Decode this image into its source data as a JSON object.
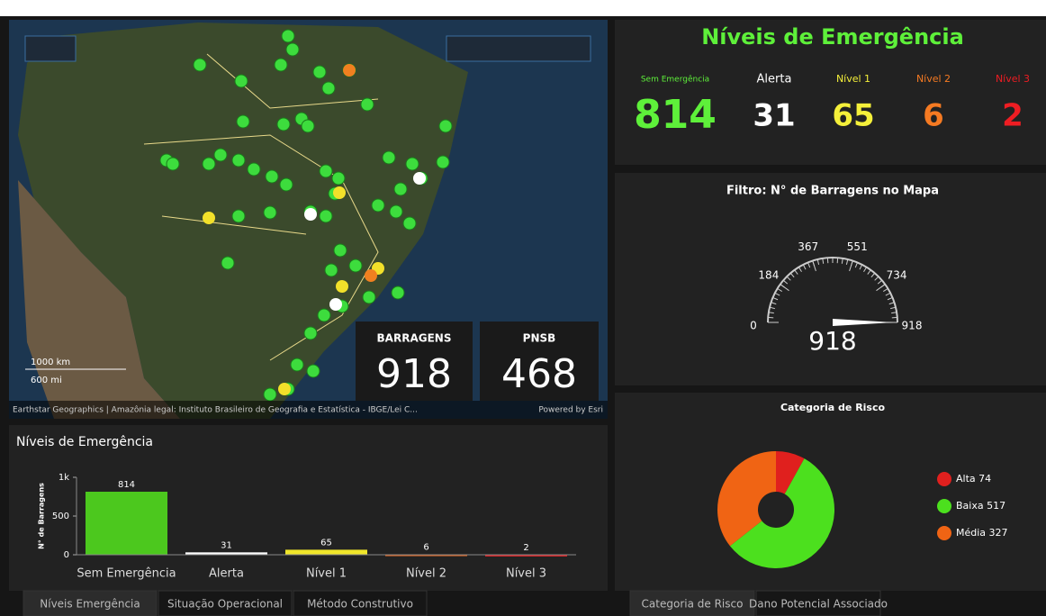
{
  "map": {
    "attribution": "Earthstar Geographics | Amazônia legal: Instituto Brasileiro de Geografia e Estatística - IBGE/Lei C...",
    "powered": "Powered by Esri",
    "scale_km": "1000 km",
    "scale_mi": "600 mi"
  },
  "indicators": [
    {
      "label": "BARRAGENS",
      "value": 918
    },
    {
      "label": "PNSB",
      "value": 468
    }
  ],
  "emergency_summary": {
    "title": "Níveis de Emergência",
    "levels": [
      {
        "label": "Sem Emergência",
        "value": 814,
        "color": "#5ef03a"
      },
      {
        "label": "Alerta",
        "value": 31,
        "color": "#ffffff"
      },
      {
        "label": "Nível 1",
        "value": 65,
        "color": "#f5f03a"
      },
      {
        "label": "Nível 2",
        "value": 6,
        "color": "#f57a22"
      },
      {
        "label": "Nível 3",
        "value": 2,
        "color": "#ee1d23"
      }
    ]
  },
  "gauge": {
    "title": "Filtro: N° de Barragens no Mapa",
    "min": 0,
    "max": 918,
    "ticks": [
      0,
      184,
      367,
      551,
      734,
      918
    ],
    "value": 918
  },
  "bar_chart": {
    "type": "bar",
    "title": "Níveis de Emergência",
    "y_label": "N° de Barragens",
    "categories": [
      "Sem Emergência",
      "Alerta",
      "Nível 1",
      "Nível 2",
      "Nível 3"
    ],
    "values": [
      814,
      31,
      65,
      6,
      2
    ],
    "colors": [
      "#4cc81e",
      "#ffffff",
      "#f0e62a",
      "#f06a22",
      "#e8262a"
    ],
    "ylim": [
      0,
      1000
    ],
    "yticks": [
      0,
      500,
      {
        "value": 1000,
        "label": "1k"
      }
    ]
  },
  "donut": {
    "type": "pie",
    "title": "Categoria de Risco",
    "categories": [
      "Alta",
      "Baixa",
      "Média"
    ],
    "values": [
      74,
      517,
      327
    ],
    "colors": [
      "#e0201e",
      "#4ce01e",
      "#f06414"
    ]
  },
  "tabs_left": [
    "Níveis Emergência",
    "Situação Operacional",
    "Método Construtivo"
  ],
  "tabs_right": [
    "Categoria de Risco",
    "Dano Potencial Associado"
  ]
}
